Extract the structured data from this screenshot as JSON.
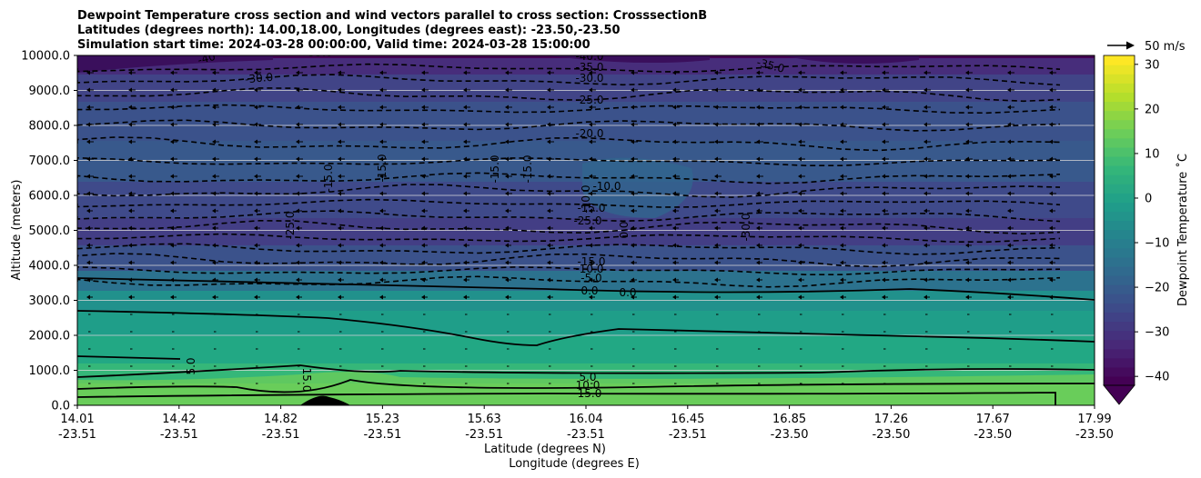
{
  "chart_data": {
    "type": "contour",
    "title_lines": [
      "Dewpoint Temperature cross section and wind vectors parallel to cross section: CrosssectionB",
      "Latitudes (degrees north): 14.00,18.00, Longitudes (degrees east): -23.50,-23.50",
      "Simulation start time: 2024-03-28 00:00:00, Valid time: 2024-03-28 15:00:00"
    ],
    "ylabel": "Altitude (meters)",
    "xlabel_lines": [
      "Latitude (degrees N)",
      "Longitude (degrees E)"
    ],
    "ylim": [
      0,
      10000
    ],
    "y_ticks": [
      "0.0",
      "1000.0",
      "2000.0",
      "3000.0",
      "4000.0",
      "5000.0",
      "6000.0",
      "7000.0",
      "8000.0",
      "9000.0",
      "10000.0"
    ],
    "x_ticks": [
      {
        "lat": "14.01",
        "lon": "-23.51"
      },
      {
        "lat": "14.42",
        "lon": "-23.51"
      },
      {
        "lat": "14.82",
        "lon": "-23.51"
      },
      {
        "lat": "15.23",
        "lon": "-23.51"
      },
      {
        "lat": "15.63",
        "lon": "-23.51"
      },
      {
        "lat": "16.04",
        "lon": "-23.51"
      },
      {
        "lat": "16.45",
        "lon": "-23.51"
      },
      {
        "lat": "16.85",
        "lon": "-23.50"
      },
      {
        "lat": "17.26",
        "lon": "-23.50"
      },
      {
        "lat": "17.67",
        "lon": "-23.50"
      },
      {
        "lat": "17.99",
        "lon": "-23.50"
      }
    ],
    "colorbar": {
      "label": "Dewpoint Temperature ˚C",
      "ticks": [
        "30",
        "20",
        "10",
        "0",
        "−10",
        "−20",
        "−30",
        "−40"
      ],
      "range": [
        -42,
        32
      ],
      "extend": "min",
      "colors": [
        "#440154",
        "#482878",
        "#3e4989",
        "#31688e",
        "#26828e",
        "#1f9e89",
        "#35b779",
        "#6ece58",
        "#b5de2b",
        "#fde725"
      ]
    },
    "wind_reference": "50 m/s",
    "contour_labels_left": [
      "-40",
      "-30.0",
      "-35.0",
      "-15.0",
      "-15.0",
      "-25.0",
      "5.0",
      "15.0"
    ],
    "contour_labels_mid": [
      "-40.0",
      "-35.0",
      "-30.0",
      "-25.0",
      "-20.0",
      "-15.0",
      "-15.0",
      "-15.0",
      "-10.0",
      "-10.0",
      "-25.0",
      "0.0",
      "-15.0",
      "-10.0",
      "-5.0",
      "0.0",
      "0.0",
      "5.0",
      "10.0",
      "15.0"
    ],
    "contour_labels_right": [
      "-35.0",
      "-30.0"
    ]
  }
}
